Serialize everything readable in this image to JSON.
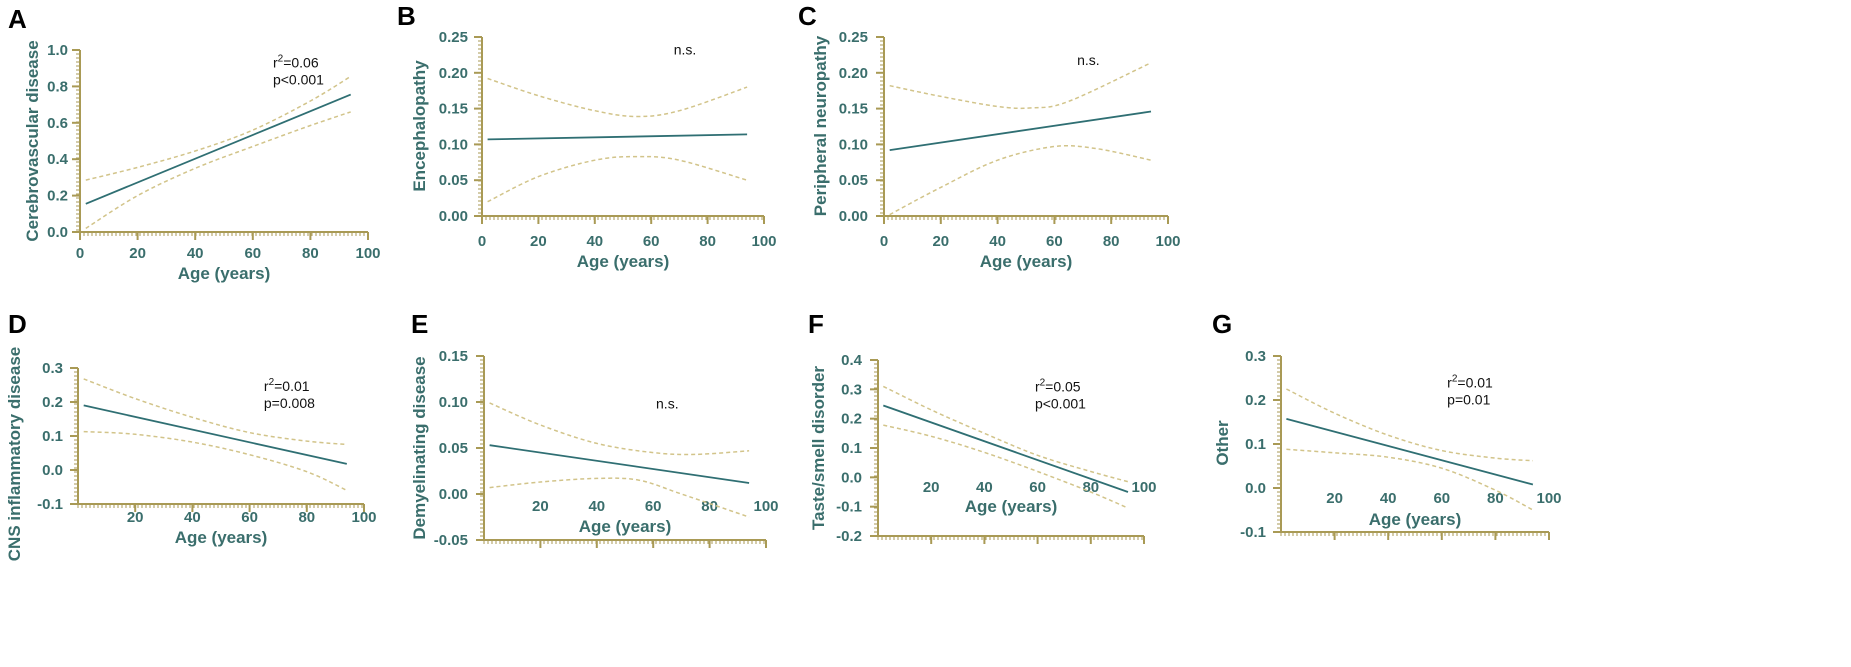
{
  "figure": {
    "background": "#ffffff"
  },
  "colors": {
    "fit_line": "#2f6f73",
    "ci_line": "#d2c48a",
    "axis": "#a99a55",
    "text": "#3a6e6c"
  },
  "chart_data": [
    {
      "panel": "A",
      "type": "line",
      "xlabel": "Age (years)",
      "ylabel": "Cerebrovascular disease",
      "xlim": [
        0,
        100
      ],
      "ylim": [
        0,
        1.0
      ],
      "xticks": [
        0,
        20,
        40,
        60,
        80,
        100
      ],
      "xtick_labels": [
        "0",
        "20",
        "40",
        "60",
        "80",
        "100"
      ],
      "yticks": [
        0,
        0.2,
        0.4,
        0.6,
        0.8,
        1.0
      ],
      "ytick_labels": [
        "0.0",
        "0.2",
        "0.4",
        "0.6",
        "0.8",
        "1.0"
      ],
      "annotation": {
        "r2_label": "r",
        "r2_sup": "2",
        "r2_value": "=0.06",
        "p_text": "p<0.001"
      },
      "series": [
        {
          "name": "fit",
          "x": [
            2,
            94
          ],
          "y": [
            0.155,
            0.755
          ]
        },
        {
          "name": "ci_upper",
          "x": [
            2,
            20,
            40,
            60,
            80,
            94
          ],
          "y": [
            0.285,
            0.355,
            0.445,
            0.56,
            0.72,
            0.855
          ]
        },
        {
          "name": "ci_lower",
          "x": [
            2,
            20,
            40,
            60,
            80,
            94
          ],
          "y": [
            0.02,
            0.2,
            0.35,
            0.47,
            0.585,
            0.66
          ]
        }
      ]
    },
    {
      "panel": "B",
      "type": "line",
      "xlabel": "Age (years)",
      "ylabel": "Encephalopathy",
      "xlim": [
        0,
        100
      ],
      "ylim": [
        0,
        0.25
      ],
      "xticks": [
        0,
        20,
        40,
        60,
        80,
        100
      ],
      "xtick_labels": [
        "0",
        "20",
        "40",
        "60",
        "80",
        "100"
      ],
      "yticks": [
        0,
        0.05,
        0.1,
        0.15,
        0.2,
        0.25
      ],
      "ytick_labels": [
        "0.00",
        "0.05",
        "0.10",
        "0.15",
        "0.20",
        "0.25"
      ],
      "annotation": {
        "ns_text": "n.s."
      },
      "series": [
        {
          "name": "fit",
          "x": [
            2,
            94
          ],
          "y": [
            0.107,
            0.114
          ]
        },
        {
          "name": "ci_upper",
          "x": [
            2,
            20,
            40,
            55,
            70,
            94
          ],
          "y": [
            0.192,
            0.168,
            0.147,
            0.139,
            0.147,
            0.18
          ]
        },
        {
          "name": "ci_lower",
          "x": [
            2,
            20,
            40,
            55,
            70,
            94
          ],
          "y": [
            0.02,
            0.055,
            0.078,
            0.083,
            0.078,
            0.05
          ]
        }
      ]
    },
    {
      "panel": "C",
      "type": "line",
      "xlabel": "Age (years)",
      "ylabel": "Peripheral neuropathy",
      "xlim": [
        0,
        100
      ],
      "ylim": [
        0,
        0.25
      ],
      "xticks": [
        0,
        20,
        40,
        60,
        80,
        100
      ],
      "xtick_labels": [
        "0",
        "20",
        "40",
        "60",
        "80",
        "100"
      ],
      "yticks": [
        0,
        0.05,
        0.1,
        0.15,
        0.2,
        0.25
      ],
      "ytick_labels": [
        "0.00",
        "0.05",
        "0.10",
        "0.15",
        "0.20",
        "0.25"
      ],
      "annotation": {
        "ns_text": "n.s."
      },
      "series": [
        {
          "name": "fit",
          "x": [
            2,
            94
          ],
          "y": [
            0.092,
            0.146
          ]
        },
        {
          "name": "ci_upper",
          "x": [
            2,
            20,
            40,
            52,
            65,
            94
          ],
          "y": [
            0.182,
            0.167,
            0.153,
            0.151,
            0.16,
            0.214
          ]
        },
        {
          "name": "ci_lower",
          "x": [
            2,
            20,
            40,
            60,
            75,
            94
          ],
          "y": [
            0.002,
            0.04,
            0.078,
            0.097,
            0.094,
            0.078
          ]
        }
      ]
    },
    {
      "panel": "D",
      "type": "line",
      "xlabel": "Age (years)",
      "ylabel": "CNS inflammatory disease",
      "xlim": [
        0,
        100
      ],
      "ylim": [
        -0.1,
        0.3
      ],
      "xticks": [
        20,
        40,
        60,
        80,
        100
      ],
      "xtick_labels": [
        "20",
        "40",
        "60",
        "80",
        "100"
      ],
      "yticks": [
        -0.1,
        0,
        0.1,
        0.2,
        0.3
      ],
      "ytick_labels": [
        "-0.1",
        "0.0",
        "0.1",
        "0.2",
        "0.3"
      ],
      "annotation": {
        "r2_label": "r",
        "r2_sup": "2",
        "r2_value": "=0.01",
        "p_text": "p=0.008"
      },
      "series": [
        {
          "name": "fit",
          "x": [
            2,
            94
          ],
          "y": [
            0.19,
            0.018
          ]
        },
        {
          "name": "ci_upper",
          "x": [
            2,
            20,
            40,
            60,
            80,
            94
          ],
          "y": [
            0.268,
            0.21,
            0.155,
            0.11,
            0.085,
            0.075
          ]
        },
        {
          "name": "ci_lower",
          "x": [
            2,
            20,
            40,
            60,
            80,
            94
          ],
          "y": [
            0.113,
            0.105,
            0.082,
            0.045,
            -0.005,
            -0.06
          ]
        }
      ]
    },
    {
      "panel": "E",
      "type": "line",
      "xlabel": "Age (years)",
      "ylabel": "Demyelinating disease",
      "xlim": [
        0,
        100
      ],
      "ylim": [
        -0.05,
        0.15
      ],
      "xticks": [
        20,
        40,
        60,
        80,
        100
      ],
      "xtick_labels": [
        "20",
        "40",
        "60",
        "80",
        "100"
      ],
      "yticks": [
        -0.05,
        0,
        0.05,
        0.1,
        0.15
      ],
      "ytick_labels": [
        "-0.05",
        "0.00",
        "0.05",
        "0.10",
        "0.15"
      ],
      "annotation": {
        "ns_text": "n.s."
      },
      "series": [
        {
          "name": "fit",
          "x": [
            2,
            94
          ],
          "y": [
            0.053,
            0.012
          ]
        },
        {
          "name": "ci_upper",
          "x": [
            2,
            20,
            40,
            60,
            75,
            94
          ],
          "y": [
            0.099,
            0.075,
            0.055,
            0.045,
            0.043,
            0.047
          ]
        },
        {
          "name": "ci_lower",
          "x": [
            2,
            20,
            40,
            55,
            70,
            94
          ],
          "y": [
            0.007,
            0.013,
            0.017,
            0.015,
            0.0,
            -0.025
          ]
        }
      ]
    },
    {
      "panel": "F",
      "type": "line",
      "xlabel": "Age (years)",
      "ylabel": "Taste/smell disorder",
      "xlim": [
        0,
        100
      ],
      "ylim": [
        -0.2,
        0.4
      ],
      "xticks": [
        20,
        40,
        60,
        80,
        100
      ],
      "xtick_labels": [
        "20",
        "40",
        "60",
        "80",
        "100"
      ],
      "yticks": [
        -0.2,
        -0.1,
        0,
        0.1,
        0.2,
        0.3,
        0.4
      ],
      "ytick_labels": [
        "-0.2",
        "-0.1",
        "0.0",
        "0.1",
        "0.2",
        "0.3",
        "0.4"
      ],
      "annotation": {
        "r2_label": "r",
        "r2_sup": "2",
        "r2_value": "=0.05",
        "p_text": "p<0.001"
      },
      "series": [
        {
          "name": "fit",
          "x": [
            2,
            94
          ],
          "y": [
            0.245,
            -0.05
          ]
        },
        {
          "name": "ci_upper",
          "x": [
            2,
            20,
            40,
            60,
            80,
            94
          ],
          "y": [
            0.31,
            0.23,
            0.15,
            0.075,
            0.02,
            -0.015
          ]
        },
        {
          "name": "ci_lower",
          "x": [
            2,
            20,
            40,
            60,
            80,
            94
          ],
          "y": [
            0.178,
            0.14,
            0.085,
            0.02,
            -0.05,
            -0.105
          ]
        }
      ]
    },
    {
      "panel": "G",
      "type": "line",
      "xlabel": "Age (years)",
      "ylabel": "Other",
      "xlim": [
        0,
        100
      ],
      "ylim": [
        -0.1,
        0.3
      ],
      "xticks": [
        20,
        40,
        60,
        80,
        100
      ],
      "xtick_labels": [
        "20",
        "40",
        "60",
        "80",
        "100"
      ],
      "yticks": [
        -0.1,
        0,
        0.1,
        0.2,
        0.3
      ],
      "ytick_labels": [
        "-0.1",
        "0.0",
        "0.1",
        "0.2",
        "0.3"
      ],
      "annotation": {
        "r2_label": "r",
        "r2_sup": "2",
        "r2_value": "=0.01",
        "p_text": "p=0.01"
      },
      "series": [
        {
          "name": "fit",
          "x": [
            2,
            94
          ],
          "y": [
            0.157,
            0.008
          ]
        },
        {
          "name": "ci_upper",
          "x": [
            2,
            20,
            40,
            60,
            80,
            94
          ],
          "y": [
            0.225,
            0.17,
            0.12,
            0.085,
            0.068,
            0.062
          ]
        },
        {
          "name": "ci_lower",
          "x": [
            2,
            20,
            40,
            60,
            80,
            94
          ],
          "y": [
            0.088,
            0.08,
            0.07,
            0.045,
            -0.005,
            -0.05
          ]
        }
      ]
    }
  ]
}
